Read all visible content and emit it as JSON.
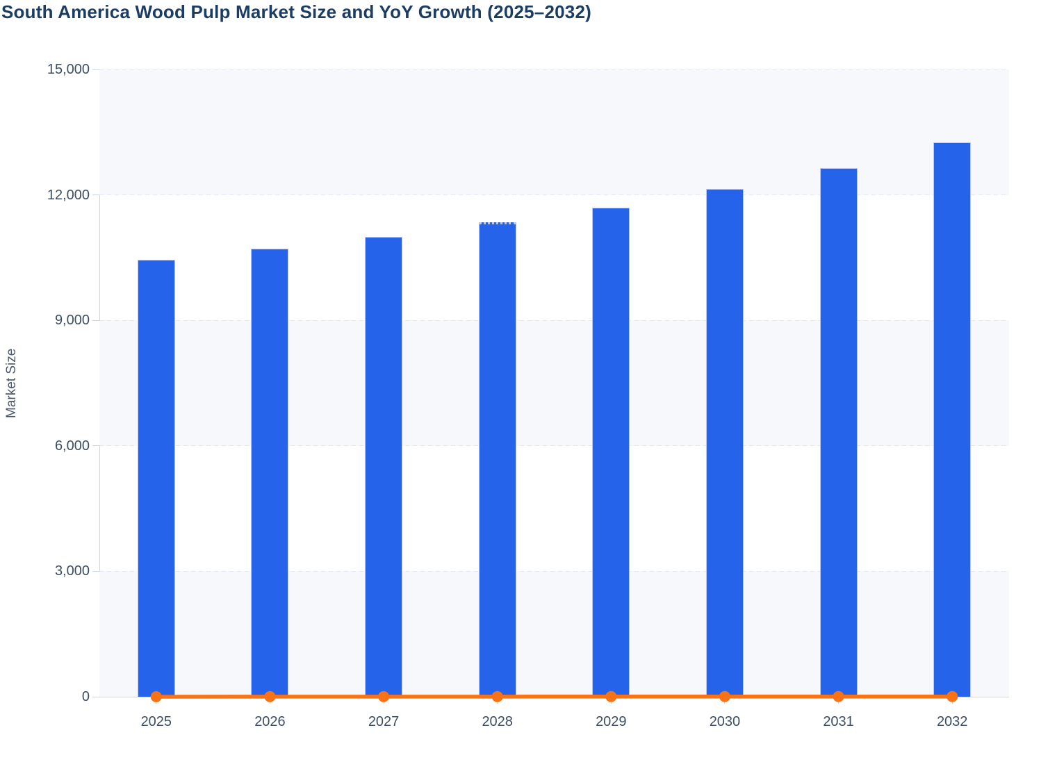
{
  "title": "South America Wood Pulp Market Size and YoY Growth (2025–2032)",
  "y_axis": {
    "label": "Market Size",
    "ticks": [
      {
        "label": "15,000",
        "value": 15000
      },
      {
        "label": "12,000",
        "value": 12000
      },
      {
        "label": "9,000",
        "value": 9000
      },
      {
        "label": "6,000",
        "value": 6000
      },
      {
        "label": "3,000",
        "value": 3000
      },
      {
        "label": "0",
        "value": 0
      }
    ]
  },
  "chart_data": {
    "type": "bar",
    "title": "South America Wood Pulp Market Size and YoY Growth (2025–2032)",
    "categories": [
      "2025",
      "2026",
      "2027",
      "2028",
      "2029",
      "2030",
      "2031",
      "2032"
    ],
    "series": [
      {
        "name": "Market Size",
        "type": "bar",
        "color": "#2563eb",
        "values": [
          10450,
          10720,
          11000,
          11340,
          11700,
          12140,
          12640,
          13250
        ],
        "dotted_top_category": "2028"
      },
      {
        "name": "YoY Growth",
        "type": "line",
        "color": "#f97316",
        "values": [
          0,
          2.6,
          2.6,
          3.1,
          3.2,
          3.8,
          4.1,
          4.8
        ]
      }
    ],
    "xlabel": "",
    "ylabel": "Market Size",
    "ylim": [
      0,
      15000
    ],
    "grid": "horizontal-dashed",
    "bands": "alternating-horizontal-gray-white",
    "legend": "none"
  },
  "colors": {
    "bar": "#2563eb",
    "bar_stroke": "#b9c6ee",
    "line": "#f97316",
    "band": "#f7f8fb",
    "grid": "#e3e6ec",
    "axis": "#ccd5e3",
    "tick_text": "#3e4e63",
    "title_text": "#1c3d63",
    "axis_title_text": "#4b5768",
    "background": "#ffffff"
  }
}
